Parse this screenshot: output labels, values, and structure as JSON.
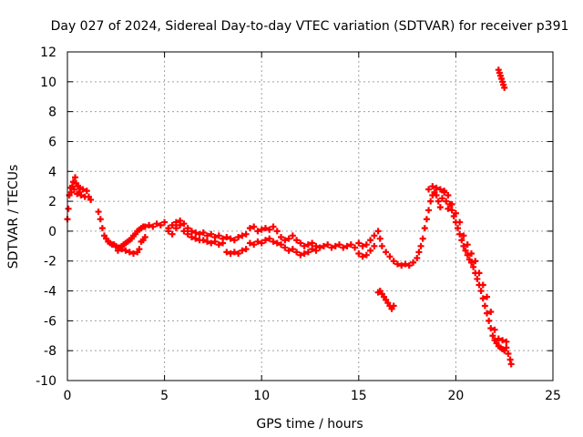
{
  "chart_data": {
    "type": "scatter",
    "title": "Day 027 of 2024, Sidereal Day-to-day VTEC variation (SDTVAR) for receiver p391",
    "xlabel": "GPS time / hours",
    "ylabel": "SDTVAR / TECUs",
    "xlim": [
      0,
      25
    ],
    "ylim": [
      -10,
      12
    ],
    "x_ticks": [
      0,
      5,
      10,
      15,
      20,
      25
    ],
    "y_ticks": [
      -10,
      -8,
      -6,
      -4,
      -2,
      0,
      2,
      4,
      6,
      8,
      10,
      12
    ],
    "x_tick_labels": [
      "0",
      "5",
      "10",
      "15",
      "20",
      "25"
    ],
    "y_tick_labels": [
      "-10",
      "-8",
      "-6",
      "-4",
      "-2",
      "0",
      "2",
      "4",
      "6",
      "8",
      "10",
      "12"
    ],
    "grid": true,
    "legend": "none",
    "marker": "+",
    "color": "#ff0000",
    "series": [
      {
        "name": "main",
        "points": [
          [
            0.0,
            0.8
          ],
          [
            0.05,
            1.5
          ],
          [
            0.1,
            2.4
          ],
          [
            0.15,
            2.9
          ],
          [
            0.2,
            2.6
          ],
          [
            0.25,
            3.0
          ],
          [
            0.3,
            3.3
          ],
          [
            0.35,
            2.8
          ],
          [
            0.4,
            3.6
          ],
          [
            0.45,
            3.2
          ],
          [
            0.5,
            2.5
          ],
          [
            0.55,
            3.0
          ],
          [
            0.6,
            2.6
          ],
          [
            0.65,
            2.9
          ],
          [
            0.7,
            2.4
          ],
          [
            0.8,
            2.8
          ],
          [
            0.9,
            2.3
          ],
          [
            1.0,
            2.7
          ],
          [
            1.1,
            2.3
          ],
          [
            1.2,
            2.1
          ],
          [
            1.6,
            1.3
          ],
          [
            1.7,
            0.8
          ],
          [
            1.8,
            0.2
          ],
          [
            1.9,
            -0.3
          ],
          [
            2.0,
            -0.5
          ],
          [
            2.1,
            -0.7
          ],
          [
            2.2,
            -0.8
          ],
          [
            2.3,
            -0.9
          ],
          [
            2.4,
            -0.9
          ],
          [
            2.5,
            -1.0
          ],
          [
            2.6,
            -1.1
          ],
          [
            2.7,
            -1.1
          ],
          [
            2.8,
            -1.0
          ],
          [
            2.9,
            -0.9
          ],
          [
            3.0,
            -0.8
          ],
          [
            3.1,
            -0.7
          ],
          [
            3.2,
            -0.6
          ],
          [
            3.3,
            -0.5
          ],
          [
            3.4,
            -0.3
          ],
          [
            3.5,
            -0.2
          ],
          [
            3.6,
            0.0
          ],
          [
            3.7,
            0.1
          ],
          [
            3.8,
            0.2
          ],
          [
            3.9,
            0.3
          ],
          [
            4.0,
            0.3
          ],
          [
            4.2,
            0.4
          ],
          [
            4.4,
            0.3
          ],
          [
            4.6,
            0.5
          ],
          [
            4.8,
            0.4
          ],
          [
            5.0,
            0.6
          ],
          [
            5.2,
            0.2
          ],
          [
            5.4,
            0.4
          ],
          [
            5.6,
            0.6
          ],
          [
            5.8,
            0.7
          ],
          [
            6.0,
            0.5
          ],
          [
            6.2,
            0.2
          ],
          [
            6.4,
            0.0
          ],
          [
            6.6,
            -0.1
          ],
          [
            6.8,
            -0.2
          ],
          [
            7.0,
            -0.1
          ],
          [
            7.2,
            -0.3
          ],
          [
            7.4,
            -0.2
          ],
          [
            7.6,
            -0.4
          ],
          [
            7.8,
            -0.3
          ],
          [
            8.0,
            -0.5
          ],
          [
            8.2,
            -0.4
          ],
          [
            8.4,
            -0.5
          ],
          [
            8.6,
            -0.6
          ],
          [
            8.8,
            -0.4
          ],
          [
            9.0,
            -0.3
          ],
          [
            9.2,
            -0.2
          ],
          [
            9.4,
            0.2
          ],
          [
            9.6,
            0.3
          ],
          [
            9.8,
            0.0
          ],
          [
            10.0,
            0.1
          ],
          [
            10.2,
            0.2
          ],
          [
            10.4,
            0.1
          ],
          [
            10.6,
            0.3
          ],
          [
            10.8,
            0.0
          ],
          [
            11.0,
            -0.4
          ],
          [
            11.2,
            -0.6
          ],
          [
            11.4,
            -0.5
          ],
          [
            11.6,
            -0.3
          ],
          [
            11.8,
            -0.6
          ],
          [
            12.0,
            -0.8
          ],
          [
            12.2,
            -1.0
          ],
          [
            12.4,
            -0.9
          ],
          [
            12.6,
            -0.8
          ],
          [
            12.8,
            -1.0
          ],
          [
            13.0,
            -1.1
          ],
          [
            13.2,
            -1.0
          ],
          [
            13.4,
            -0.9
          ],
          [
            13.6,
            -1.1
          ],
          [
            13.8,
            -1.0
          ],
          [
            14.0,
            -0.9
          ],
          [
            14.2,
            -1.1
          ],
          [
            14.4,
            -1.0
          ],
          [
            14.6,
            -0.9
          ],
          [
            14.8,
            -1.1
          ],
          [
            15.0,
            -0.8
          ],
          [
            15.2,
            -1.0
          ],
          [
            15.4,
            -0.9
          ],
          [
            15.6,
            -0.6
          ],
          [
            15.8,
            -0.3
          ],
          [
            16.0,
            0.0
          ],
          [
            16.1,
            -0.5
          ],
          [
            16.2,
            -1.0
          ],
          [
            16.4,
            -1.4
          ],
          [
            16.6,
            -1.7
          ],
          [
            16.8,
            -2.0
          ],
          [
            17.0,
            -2.2
          ],
          [
            17.2,
            -2.3
          ],
          [
            17.4,
            -2.2
          ],
          [
            17.6,
            -2.3
          ],
          [
            17.8,
            -2.1
          ],
          [
            18.0,
            -1.8
          ],
          [
            18.1,
            -1.4
          ],
          [
            18.2,
            -1.0
          ],
          [
            18.3,
            -0.5
          ],
          [
            18.4,
            0.2
          ],
          [
            18.5,
            0.8
          ],
          [
            18.6,
            1.4
          ],
          [
            18.7,
            2.0
          ],
          [
            18.8,
            2.4
          ],
          [
            18.9,
            2.6
          ],
          [
            19.0,
            2.4
          ],
          [
            19.1,
            2.0
          ],
          [
            19.2,
            1.6
          ],
          [
            19.3,
            2.2
          ],
          [
            19.4,
            2.6
          ],
          [
            19.5,
            2.0
          ],
          [
            19.6,
            1.5
          ],
          [
            19.7,
            1.8
          ],
          [
            19.8,
            1.4
          ],
          [
            19.9,
            1.0
          ],
          [
            20.0,
            0.6
          ],
          [
            20.1,
            0.2
          ],
          [
            20.2,
            -0.2
          ],
          [
            20.3,
            -0.6
          ],
          [
            20.4,
            -1.0
          ],
          [
            20.5,
            -1.3
          ],
          [
            20.6,
            -1.6
          ],
          [
            20.7,
            -1.9
          ],
          [
            20.8,
            -2.1
          ],
          [
            20.9,
            -2.4
          ],
          [
            21.0,
            -2.8
          ],
          [
            21.1,
            -3.2
          ],
          [
            21.2,
            -3.6
          ],
          [
            21.3,
            -4.0
          ],
          [
            21.4,
            -4.5
          ],
          [
            21.5,
            -5.0
          ],
          [
            21.6,
            -5.5
          ],
          [
            21.7,
            -6.0
          ],
          [
            21.8,
            -6.5
          ],
          [
            21.9,
            -7.0
          ],
          [
            22.0,
            -7.3
          ],
          [
            22.1,
            -7.5
          ],
          [
            22.2,
            -7.7
          ],
          [
            22.3,
            -7.8
          ],
          [
            22.4,
            -7.9
          ],
          [
            22.5,
            -8.0
          ],
          [
            22.6,
            -7.8
          ],
          [
            22.7,
            -8.2
          ],
          [
            22.8,
            -8.6
          ],
          [
            22.85,
            -8.9
          ]
        ]
      },
      {
        "name": "lower-branch-early",
        "points": [
          [
            2.6,
            -1.3
          ],
          [
            2.8,
            -1.2
          ],
          [
            3.0,
            -1.3
          ],
          [
            3.2,
            -1.4
          ],
          [
            3.4,
            -1.5
          ],
          [
            3.6,
            -1.4
          ],
          [
            3.7,
            -1.2
          ],
          [
            3.8,
            -0.7
          ],
          [
            3.9,
            -0.6
          ],
          [
            4.0,
            -0.4
          ],
          [
            5.2,
            0.0
          ],
          [
            5.4,
            -0.2
          ],
          [
            5.6,
            0.2
          ],
          [
            5.8,
            0.4
          ],
          [
            6.0,
            0.0
          ],
          [
            6.2,
            -0.2
          ],
          [
            6.4,
            -0.4
          ],
          [
            6.6,
            -0.5
          ],
          [
            6.8,
            -0.6
          ],
          [
            7.0,
            -0.6
          ],
          [
            7.2,
            -0.7
          ],
          [
            7.4,
            -0.8
          ],
          [
            7.6,
            -0.7
          ],
          [
            7.8,
            -0.9
          ],
          [
            8.0,
            -0.8
          ]
        ]
      },
      {
        "name": "lower-branch-mid",
        "points": [
          [
            8.2,
            -1.4
          ],
          [
            8.4,
            -1.5
          ],
          [
            8.6,
            -1.4
          ],
          [
            8.8,
            -1.5
          ],
          [
            9.0,
            -1.3
          ],
          [
            9.2,
            -1.2
          ],
          [
            9.4,
            -0.8
          ],
          [
            9.6,
            -0.9
          ],
          [
            9.8,
            -0.7
          ],
          [
            10.0,
            -0.8
          ],
          [
            10.2,
            -0.6
          ],
          [
            10.4,
            -0.5
          ],
          [
            10.6,
            -0.7
          ],
          [
            10.8,
            -0.8
          ],
          [
            11.0,
            -0.9
          ],
          [
            11.2,
            -1.1
          ],
          [
            11.4,
            -1.3
          ],
          [
            11.6,
            -1.2
          ],
          [
            11.8,
            -1.4
          ],
          [
            12.0,
            -1.6
          ],
          [
            12.2,
            -1.5
          ],
          [
            12.4,
            -1.4
          ],
          [
            12.6,
            -1.2
          ],
          [
            12.8,
            -1.3
          ],
          [
            15.0,
            -1.5
          ],
          [
            15.2,
            -1.7
          ],
          [
            15.4,
            -1.6
          ],
          [
            15.6,
            -1.3
          ],
          [
            15.8,
            -1.0
          ]
        ]
      },
      {
        "name": "upper-branch-late",
        "points": [
          [
            18.6,
            2.8
          ],
          [
            18.8,
            3.0
          ],
          [
            19.0,
            2.9
          ],
          [
            19.2,
            2.8
          ],
          [
            19.4,
            2.7
          ],
          [
            19.6,
            2.4
          ],
          [
            19.8,
            1.8
          ],
          [
            20.0,
            1.2
          ],
          [
            20.2,
            0.6
          ],
          [
            20.4,
            -0.3
          ],
          [
            20.6,
            -0.9
          ],
          [
            20.8,
            -1.5
          ],
          [
            21.0,
            -2.0
          ],
          [
            21.2,
            -2.8
          ],
          [
            21.4,
            -3.6
          ],
          [
            21.6,
            -4.4
          ],
          [
            21.8,
            -5.4
          ],
          [
            22.0,
            -6.6
          ],
          [
            22.2,
            -7.2
          ],
          [
            22.4,
            -7.3
          ],
          [
            22.6,
            -7.4
          ]
        ]
      },
      {
        "name": "segment-16h",
        "points": [
          [
            16.0,
            -4.1
          ],
          [
            16.1,
            -4.0
          ],
          [
            16.2,
            -4.2
          ],
          [
            16.3,
            -4.4
          ],
          [
            16.4,
            -4.6
          ],
          [
            16.5,
            -4.8
          ],
          [
            16.6,
            -5.0
          ],
          [
            16.7,
            -5.2
          ],
          [
            16.8,
            -5.0
          ]
        ]
      },
      {
        "name": "segment-22h",
        "points": [
          [
            22.2,
            10.8
          ],
          [
            22.25,
            10.6
          ],
          [
            22.3,
            10.4
          ],
          [
            22.35,
            10.2
          ],
          [
            22.4,
            10.0
          ],
          [
            22.45,
            9.8
          ],
          [
            22.5,
            9.6
          ]
        ]
      }
    ]
  }
}
